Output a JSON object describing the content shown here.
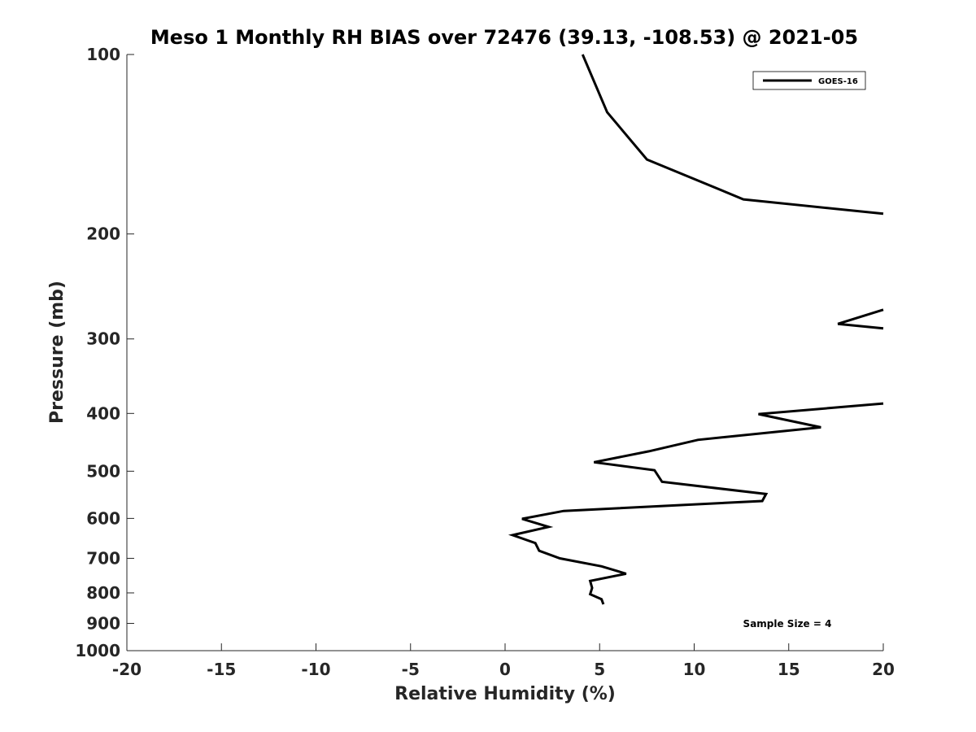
{
  "chart_data": {
    "type": "line",
    "title": "Meso 1 Monthly RH BIAS over 72476 (39.13, -108.53) @ 2021-05",
    "xlabel": "Relative Humidity (%)",
    "ylabel": "Pressure (mb)",
    "xlim": [
      -20,
      20
    ],
    "ylim": [
      100,
      1000
    ],
    "y_scale": "log",
    "y_reversed": true,
    "x_ticks": [
      -20,
      -15,
      -10,
      -5,
      0,
      5,
      10,
      15,
      20
    ],
    "y_ticks": [
      100,
      200,
      300,
      400,
      500,
      600,
      700,
      800,
      900,
      1000
    ],
    "grid": false,
    "legend_position": "top-right",
    "annotation": "Sample Size = 4",
    "series": [
      {
        "name": "GOES-16",
        "color": "#000000",
        "points": [
          [
            4.1,
            100
          ],
          [
            5.4,
            125
          ],
          [
            7.5,
            150
          ],
          [
            12.6,
            175
          ],
          [
            20.0,
            185
          ],
          [
            null,
            215
          ],
          [
            20.0,
            268
          ],
          [
            17.6,
            283
          ],
          [
            20.0,
            288
          ],
          [
            null,
            340
          ],
          [
            20.0,
            385
          ],
          [
            13.4,
            401
          ],
          [
            16.7,
            422
          ],
          [
            10.2,
            443
          ],
          [
            7.6,
            463
          ],
          [
            4.7,
            483
          ],
          [
            7.9,
            498
          ],
          [
            8.3,
            521
          ],
          [
            13.8,
            546
          ],
          [
            13.6,
            561
          ],
          [
            3.1,
            583
          ],
          [
            0.9,
            601
          ],
          [
            2.3,
            620
          ],
          [
            0.4,
            640
          ],
          [
            1.6,
            660
          ],
          [
            1.8,
            680
          ],
          [
            2.9,
            700
          ],
          [
            5.1,
            722
          ],
          [
            6.4,
            743
          ],
          [
            4.5,
            764
          ],
          [
            4.6,
            785
          ],
          [
            4.5,
            804
          ],
          [
            5.1,
            820
          ],
          [
            5.2,
            836
          ]
        ]
      }
    ]
  }
}
